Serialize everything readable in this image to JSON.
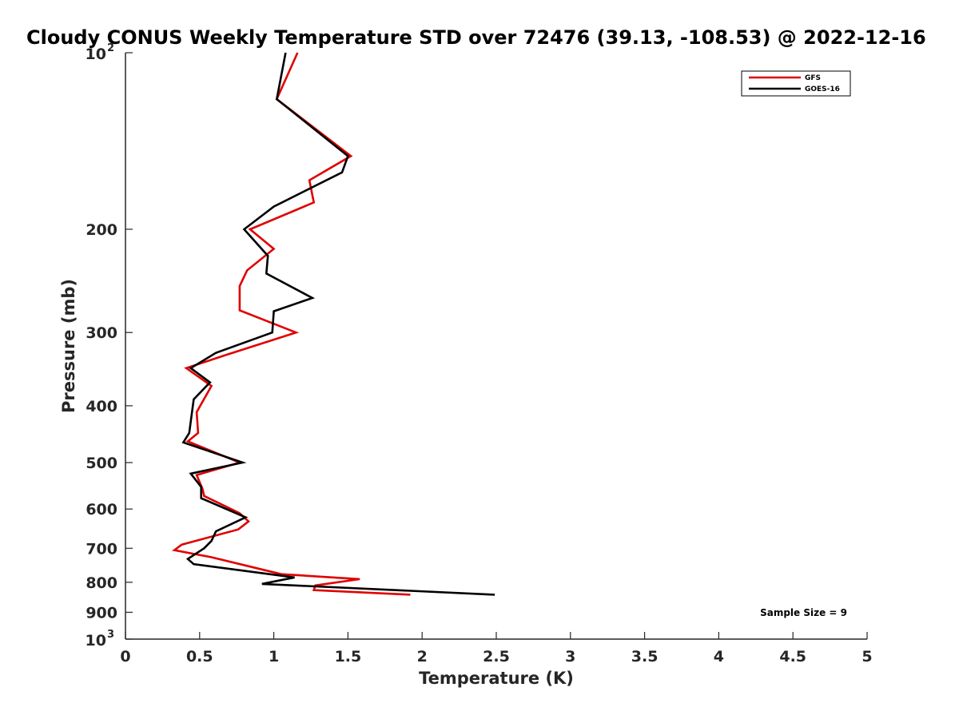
{
  "chart_data": {
    "type": "line",
    "title": "Cloudy CONUS Weekly Temperature STD over 72476 (39.13, -108.53) @ 2022-12-16",
    "xlabel": "Temperature (K)",
    "ylabel": "Pressure (mb)",
    "xlim": [
      0,
      5
    ],
    "ylim": [
      100,
      1000
    ],
    "yscale": "log",
    "y_reversed": true,
    "x_ticks": [
      "0",
      "0.5",
      "1",
      "1.5",
      "2",
      "2.5",
      "3",
      "3.5",
      "4",
      "4.5",
      "5"
    ],
    "y_ticks": [
      {
        "value": 100,
        "base": "10",
        "exp": "2"
      },
      {
        "value": 200,
        "label": "200"
      },
      {
        "value": 300,
        "label": "300"
      },
      {
        "value": 400,
        "label": "400"
      },
      {
        "value": 500,
        "label": "500"
      },
      {
        "value": 600,
        "label": "600"
      },
      {
        "value": 700,
        "label": "700"
      },
      {
        "value": 800,
        "label": "800"
      },
      {
        "value": 900,
        "label": "900"
      },
      {
        "value": 1000,
        "base": "10",
        "exp": "3"
      }
    ],
    "grid": false,
    "legend_position": "top-right",
    "annotation": "Sample Size = 9",
    "series": [
      {
        "name": "GFS",
        "color": "#e00000",
        "points": [
          [
            1.16,
            100
          ],
          [
            1.02,
            120
          ],
          [
            1.52,
            150
          ],
          [
            1.24,
            165
          ],
          [
            1.27,
            180
          ],
          [
            0.84,
            200
          ],
          [
            1.0,
            216
          ],
          [
            0.82,
            235
          ],
          [
            0.77,
            250
          ],
          [
            0.77,
            275
          ],
          [
            1.15,
            300
          ],
          [
            0.67,
            328
          ],
          [
            0.41,
            345
          ],
          [
            0.58,
            370
          ],
          [
            0.48,
            410
          ],
          [
            0.49,
            445
          ],
          [
            0.42,
            460
          ],
          [
            0.77,
            500
          ],
          [
            0.48,
            525
          ],
          [
            0.52,
            555
          ],
          [
            0.53,
            570
          ],
          [
            0.77,
            610
          ],
          [
            0.83,
            630
          ],
          [
            0.76,
            650
          ],
          [
            0.38,
            690
          ],
          [
            0.33,
            705
          ],
          [
            0.58,
            725
          ],
          [
            0.82,
            750
          ],
          [
            1.05,
            775
          ],
          [
            1.58,
            790
          ],
          [
            1.28,
            810
          ],
          [
            1.27,
            825
          ],
          [
            1.92,
            840
          ]
        ]
      },
      {
        "name": "GOES-16",
        "color": "#000000",
        "points": [
          [
            1.08,
            100
          ],
          [
            1.02,
            120
          ],
          [
            1.5,
            150
          ],
          [
            1.46,
            160
          ],
          [
            1.0,
            183
          ],
          [
            0.8,
            200
          ],
          [
            0.96,
            222
          ],
          [
            0.95,
            238
          ],
          [
            1.26,
            262
          ],
          [
            1.0,
            276
          ],
          [
            0.99,
            300
          ],
          [
            0.61,
            325
          ],
          [
            0.44,
            345
          ],
          [
            0.57,
            365
          ],
          [
            0.46,
            390
          ],
          [
            0.43,
            445
          ],
          [
            0.39,
            462
          ],
          [
            0.79,
            500
          ],
          [
            0.44,
            522
          ],
          [
            0.51,
            550
          ],
          [
            0.51,
            575
          ],
          [
            0.81,
            620
          ],
          [
            0.61,
            655
          ],
          [
            0.58,
            680
          ],
          [
            0.53,
            700
          ],
          [
            0.42,
            730
          ],
          [
            0.46,
            745
          ],
          [
            1.14,
            785
          ],
          [
            0.92,
            805
          ],
          [
            2.49,
            840
          ]
        ]
      }
    ]
  }
}
